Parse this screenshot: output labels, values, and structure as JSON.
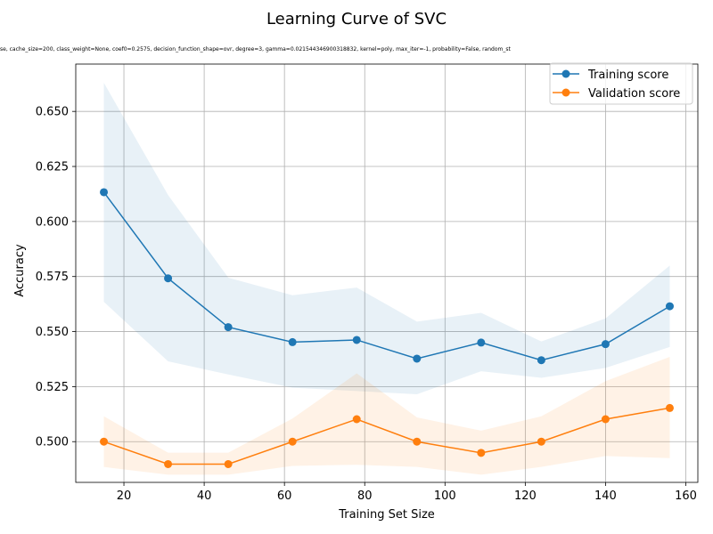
{
  "chart_data": {
    "type": "line",
    "title": "Learning Curve of SVC",
    "subtitle": "se, cache_size=200, class_weight=None, coef0=0.2575, decision_function_shape=ovr, degree=3, gamma=0.021544346900318832, kernel=poly, max_iter=-1, probability=False, random_st",
    "xlabel": "Training Set Size",
    "ylabel": "Accuracy",
    "xlim": [
      8,
      163
    ],
    "ylim": [
      0.4815,
      0.6715
    ],
    "xticks": [
      20,
      40,
      60,
      80,
      100,
      120,
      140,
      160
    ],
    "yticks": [
      0.5,
      0.525,
      0.55,
      0.575,
      0.6,
      0.625,
      0.65
    ],
    "ytick_labels": [
      "0.500",
      "0.525",
      "0.550",
      "0.575",
      "0.600",
      "0.625",
      "0.650"
    ],
    "grid": true,
    "legend_position": "top-right",
    "x": [
      15,
      31,
      46,
      62,
      78,
      93,
      109,
      124,
      140,
      156
    ],
    "series": [
      {
        "name": "Training score",
        "color": "#1f77b4",
        "fill_color": "#1f77b4",
        "values": [
          0.6133,
          0.5742,
          0.552,
          0.5452,
          0.5462,
          0.5377,
          0.545,
          0.537,
          0.5443,
          0.5615
        ],
        "upper": [
          0.663,
          0.612,
          0.5745,
          0.5665,
          0.57,
          0.5545,
          0.5585,
          0.5455,
          0.556,
          0.58
        ],
        "lower": [
          0.5635,
          0.5365,
          0.5305,
          0.5245,
          0.523,
          0.5215,
          0.532,
          0.529,
          0.5335,
          0.543
        ]
      },
      {
        "name": "Validation score",
        "color": "#ff7f0e",
        "fill_color": "#ff7f0e",
        "values": [
          0.5,
          0.4898,
          0.4898,
          0.5,
          0.5102,
          0.5,
          0.4949,
          0.5,
          0.5102,
          0.5153
        ],
        "upper": [
          0.5115,
          0.495,
          0.495,
          0.5105,
          0.531,
          0.511,
          0.505,
          0.5115,
          0.5275,
          0.5385
        ],
        "lower": [
          0.4885,
          0.485,
          0.485,
          0.489,
          0.4895,
          0.4885,
          0.485,
          0.4885,
          0.4935,
          0.4925
        ]
      }
    ]
  }
}
